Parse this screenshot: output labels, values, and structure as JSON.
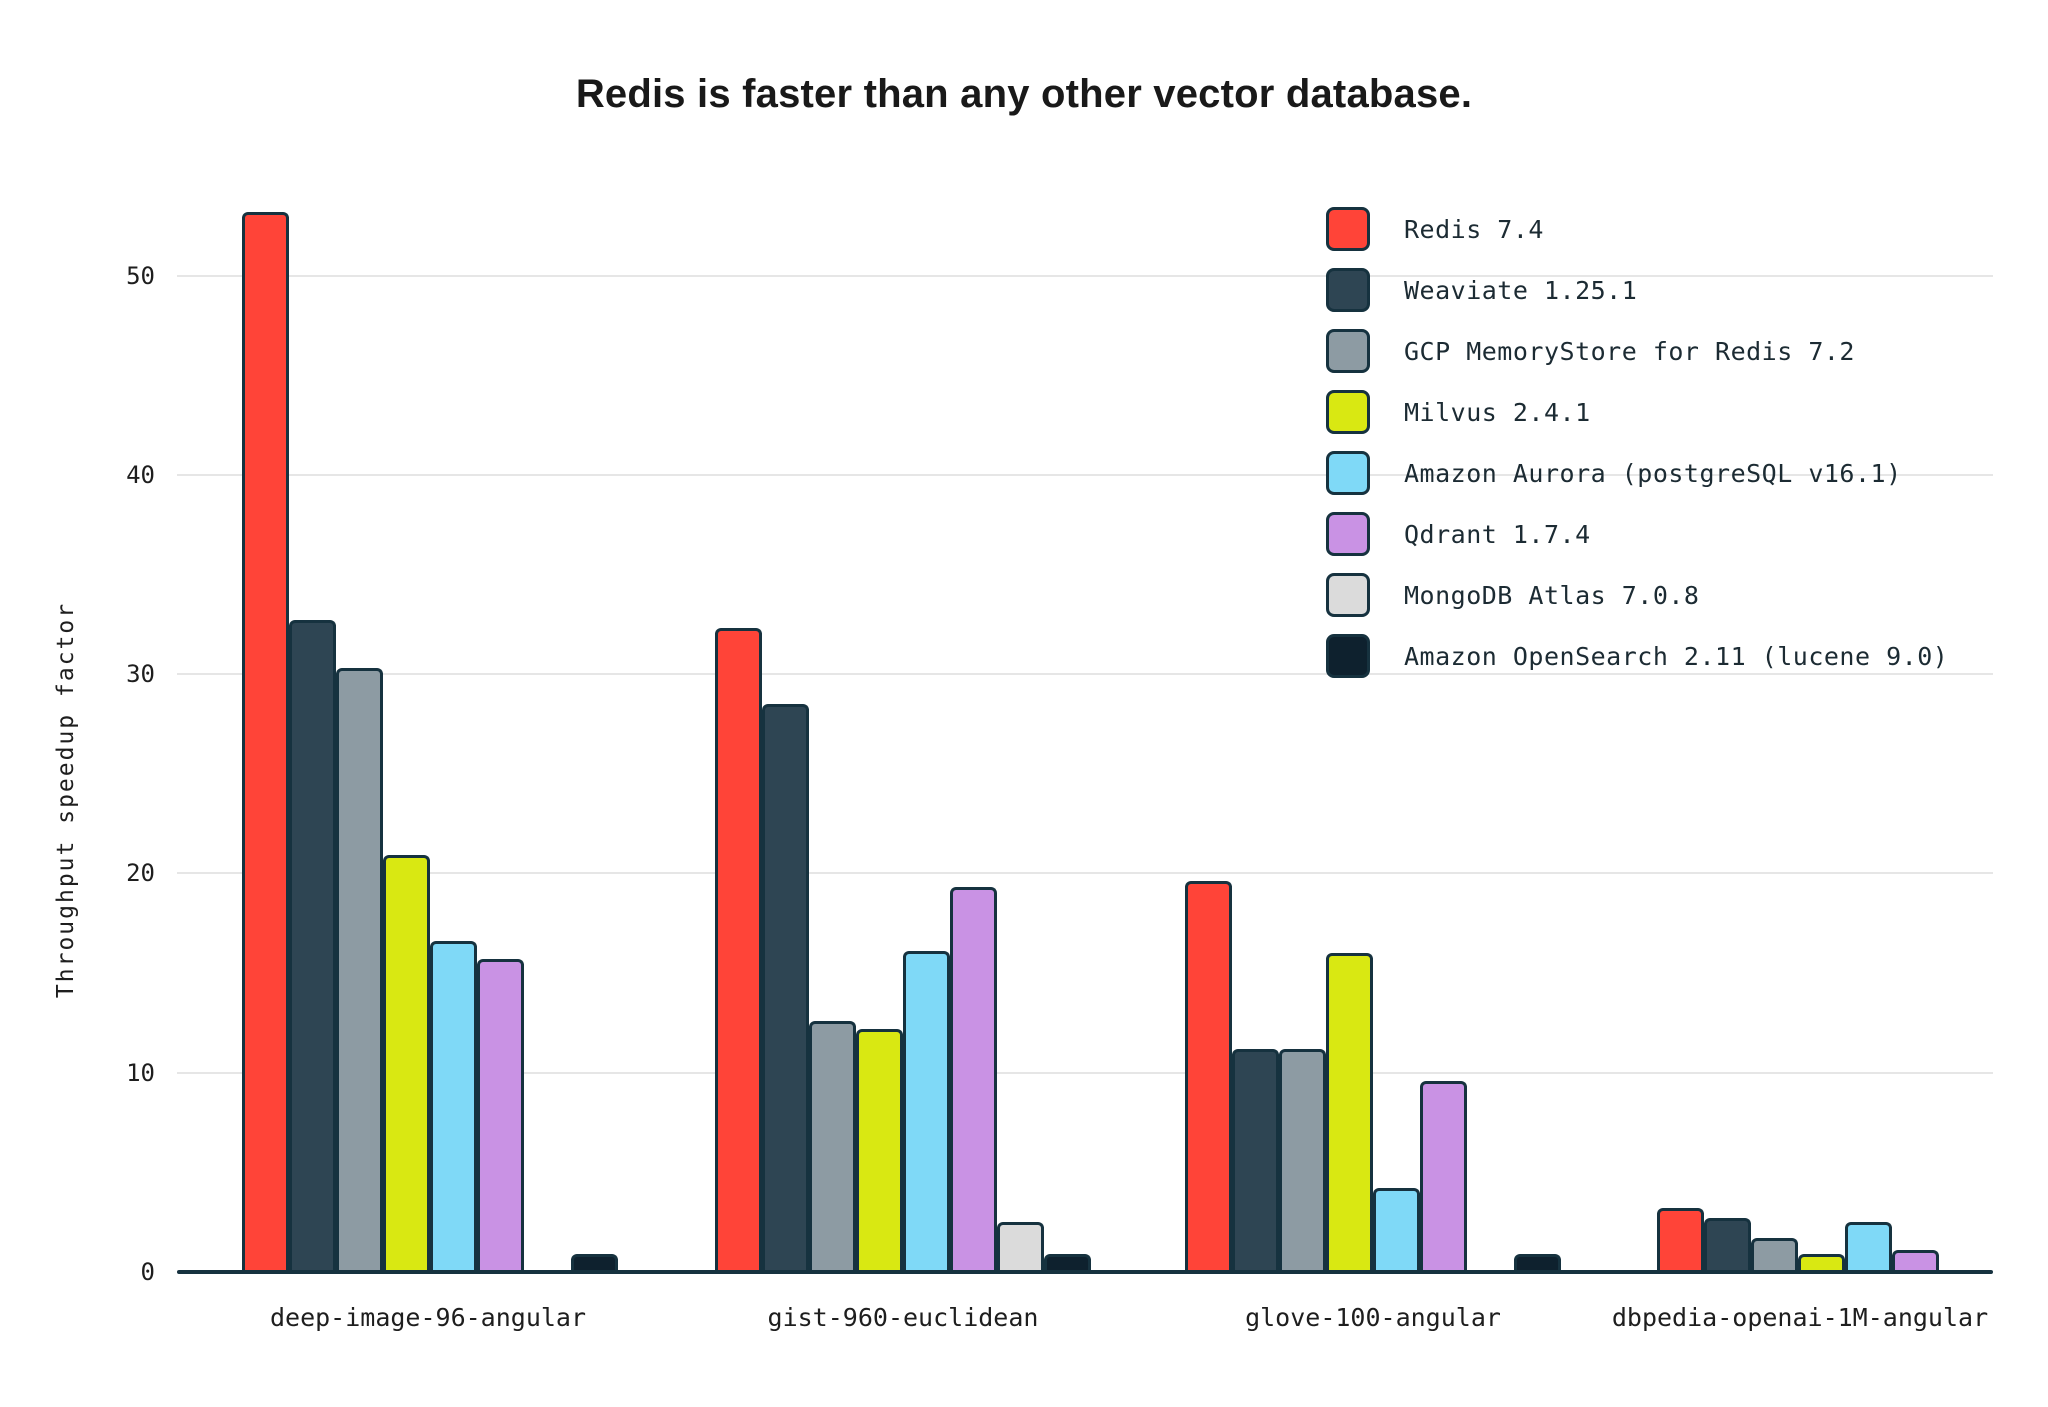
{
  "title": "Redis is faster than any other vector database.",
  "chart_data": {
    "type": "bar",
    "title": "Redis is faster than any other vector database.",
    "xlabel": "",
    "ylabel": "Throughput speedup factor",
    "categories": [
      "deep-image-96-angular",
      "gist-960-euclidean",
      "glove-100-angular",
      "dbpedia-openai-1M-angular"
    ],
    "series": [
      {
        "name": "Redis 7.4",
        "color": "#FF4438",
        "values": [
          53.2,
          32.3,
          19.6,
          3.2
        ]
      },
      {
        "name": "Weaviate 1.25.1",
        "color": "#2E4553",
        "values": [
          32.7,
          28.5,
          11.2,
          2.7
        ]
      },
      {
        "name": "GCP MemoryStore for Redis 7.2",
        "color": "#8D9BA3",
        "values": [
          30.3,
          12.6,
          11.2,
          1.7
        ]
      },
      {
        "name": "Milvus 2.4.1",
        "color": "#D9E812",
        "values": [
          20.9,
          12.2,
          16.0,
          0.9
        ]
      },
      {
        "name": "Amazon Aurora (postgreSQL v16.1)",
        "color": "#7FD9F7",
        "values": [
          16.6,
          16.1,
          4.2,
          2.5
        ]
      },
      {
        "name": "Qdrant 1.7.4",
        "color": "#C992E4",
        "values": [
          15.7,
          19.3,
          9.6,
          1.1
        ]
      },
      {
        "name": "MongoDB Atlas 7.0.8",
        "color": "#DBDBDB",
        "values": [
          0,
          2.5,
          0,
          0
        ]
      },
      {
        "name": "Amazon OpenSearch 2.11 (lucene 9.0)",
        "color": "#0E212E",
        "values": [
          0.9,
          0.9,
          0.9,
          0
        ]
      }
    ],
    "yticks": [
      0,
      10,
      20,
      30,
      40,
      50
    ],
    "ylim": [
      0,
      55.8
    ],
    "grid": "horizontal",
    "legend_position": "top-right"
  },
  "colors": {
    "background": "#FFFFFF",
    "axis": "#16323F",
    "gridline": "#E6E6E6",
    "title_text": "#191919",
    "tick_text": "#1E1E1E",
    "legend_text": "#1C2B33"
  }
}
